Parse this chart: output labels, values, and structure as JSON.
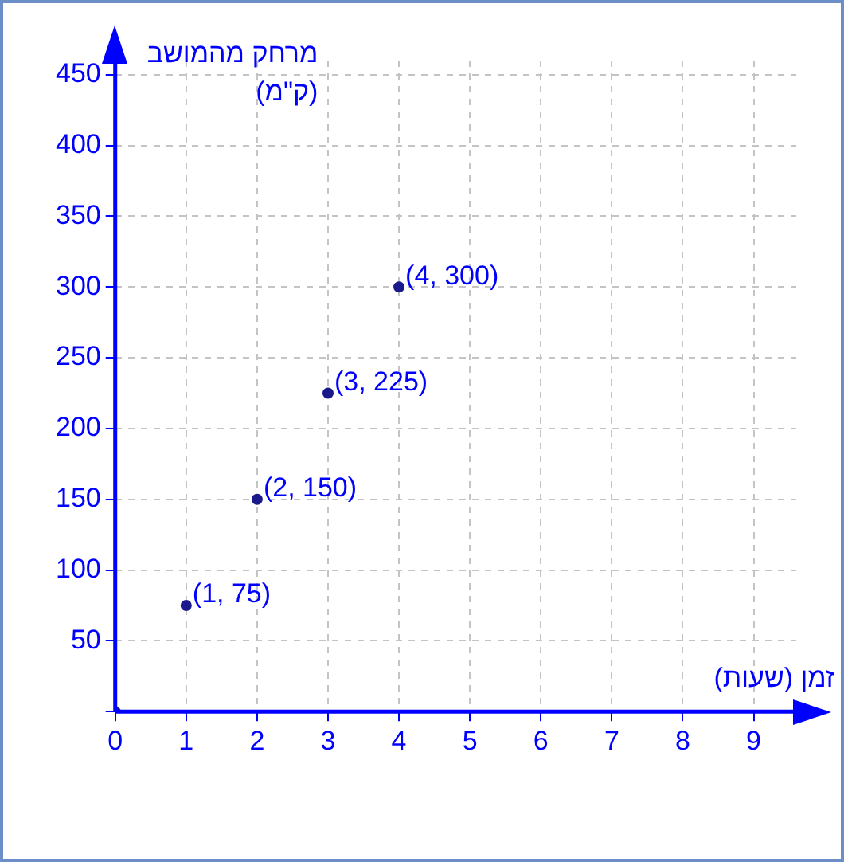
{
  "chart_data": {
    "type": "scatter",
    "xlabel": "זמן (שעות)",
    "ylabel": "מרחק מהמושב\n(ק\"מ)",
    "x": [
      0,
      1,
      2,
      3,
      4
    ],
    "series": [
      {
        "color": "#1a1a8c",
        "values": [
          0,
          75,
          150,
          225,
          300
        ],
        "value_labels": [
          null,
          "(1, 75)",
          "(2, 150)",
          "(3, 225)",
          "(4, 300)"
        ]
      }
    ],
    "xlim": [
      0,
      9.6
    ],
    "xticks": [
      0,
      1,
      2,
      3,
      4,
      5,
      6,
      7,
      8,
      9
    ],
    "ylim": [
      0,
      460
    ],
    "yticks": [
      {
        "value": 0,
        "label": null
      },
      50,
      100,
      150,
      200,
      250,
      300,
      350,
      400,
      450
    ],
    "grid": true,
    "marker": "circle",
    "legend": false
  }
}
